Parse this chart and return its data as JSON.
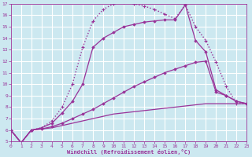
{
  "xlabel": "Windchill (Refroidissement éolien,°C)",
  "background_color": "#cce8f0",
  "grid_color": "#ffffff",
  "line_color": "#993399",
  "xlim": [
    0,
    23
  ],
  "ylim": [
    5,
    17
  ],
  "xticks": [
    0,
    1,
    2,
    3,
    4,
    5,
    6,
    7,
    8,
    9,
    10,
    11,
    12,
    13,
    14,
    15,
    16,
    17,
    18,
    19,
    20,
    21,
    22,
    23
  ],
  "yticks": [
    5,
    6,
    7,
    8,
    9,
    10,
    11,
    12,
    13,
    14,
    15,
    16,
    17
  ],
  "curves": [
    {
      "x": [
        0,
        1,
        2,
        3,
        4,
        5,
        6,
        7,
        8,
        9,
        10,
        11,
        12,
        13,
        14,
        15,
        16,
        17,
        18,
        19,
        20,
        21,
        22,
        23
      ],
      "y": [
        6.0,
        4.9,
        6.0,
        6.1,
        6.2,
        6.4,
        6.6,
        6.8,
        7.0,
        7.2,
        7.4,
        7.5,
        7.6,
        7.7,
        7.8,
        7.9,
        8.0,
        8.1,
        8.2,
        8.3,
        8.3,
        8.3,
        8.3,
        8.3
      ],
      "style": "-",
      "marker": null,
      "linewidth": 0.9
    },
    {
      "x": [
        0,
        1,
        2,
        3,
        4,
        5,
        6,
        7,
        8,
        9,
        10,
        11,
        12,
        13,
        14,
        15,
        16,
        17,
        18,
        19,
        20,
        21,
        22,
        23
      ],
      "y": [
        6.0,
        4.9,
        6.0,
        6.1,
        6.3,
        6.6,
        7.0,
        7.4,
        7.8,
        8.3,
        8.8,
        9.3,
        9.8,
        10.2,
        10.6,
        11.0,
        11.3,
        11.6,
        11.9,
        12.0,
        9.3,
        9.0,
        8.5,
        8.3
      ],
      "style": "-",
      "marker": "D",
      "linewidth": 0.9
    },
    {
      "x": [
        0,
        1,
        2,
        3,
        4,
        5,
        6,
        7,
        8,
        9,
        10,
        11,
        12,
        13,
        14,
        15,
        16,
        17,
        18,
        19,
        20,
        21,
        22,
        23
      ],
      "y": [
        6.0,
        4.9,
        6.0,
        6.2,
        6.6,
        7.5,
        8.5,
        10.0,
        13.2,
        14.0,
        14.5,
        15.0,
        15.2,
        15.4,
        15.5,
        15.6,
        15.6,
        16.9,
        13.8,
        12.8,
        9.5,
        9.0,
        8.5,
        8.3
      ],
      "style": "-",
      "marker": "D",
      "linewidth": 0.9
    },
    {
      "x": [
        0,
        1,
        2,
        3,
        4,
        5,
        6,
        7,
        8,
        9,
        10,
        11,
        12,
        13,
        14,
        15,
        16,
        17,
        18,
        19,
        20,
        21,
        22,
        23
      ],
      "y": [
        6.0,
        4.9,
        6.0,
        6.2,
        6.8,
        8.0,
        10.0,
        13.2,
        15.5,
        16.5,
        17.0,
        17.1,
        17.0,
        16.8,
        16.5,
        16.1,
        15.7,
        16.9,
        15.0,
        13.8,
        11.9,
        9.8,
        8.3,
        8.3
      ],
      "style": ":",
      "marker": "+",
      "linewidth": 1.0
    }
  ]
}
